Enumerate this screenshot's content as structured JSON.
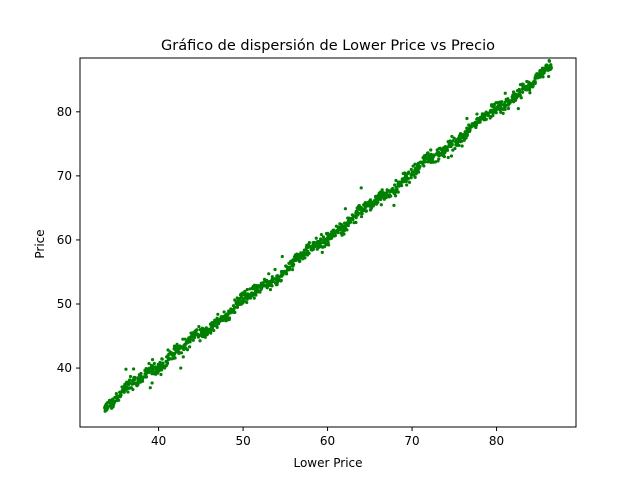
{
  "chart_data": {
    "type": "scatter",
    "title": "Gráfico de dispersión de Lower Price vs Precio",
    "xlabel": "Lower Price",
    "ylabel": "Price",
    "xlim": [
      30.7,
      89.4
    ],
    "ylim": [
      30.8,
      88.4
    ],
    "xticks": [
      40,
      50,
      60,
      70,
      80
    ],
    "yticks": [
      40,
      50,
      60,
      70,
      80
    ],
    "grid": false,
    "legend": "none",
    "marker_color": "#008000",
    "point_count": 1400,
    "series": [
      {
        "x_range": [
          33.5,
          86.5
        ],
        "relation": "Price ≈ Lower Price + 0.4",
        "noise_sd": 0.45
      }
    ]
  }
}
